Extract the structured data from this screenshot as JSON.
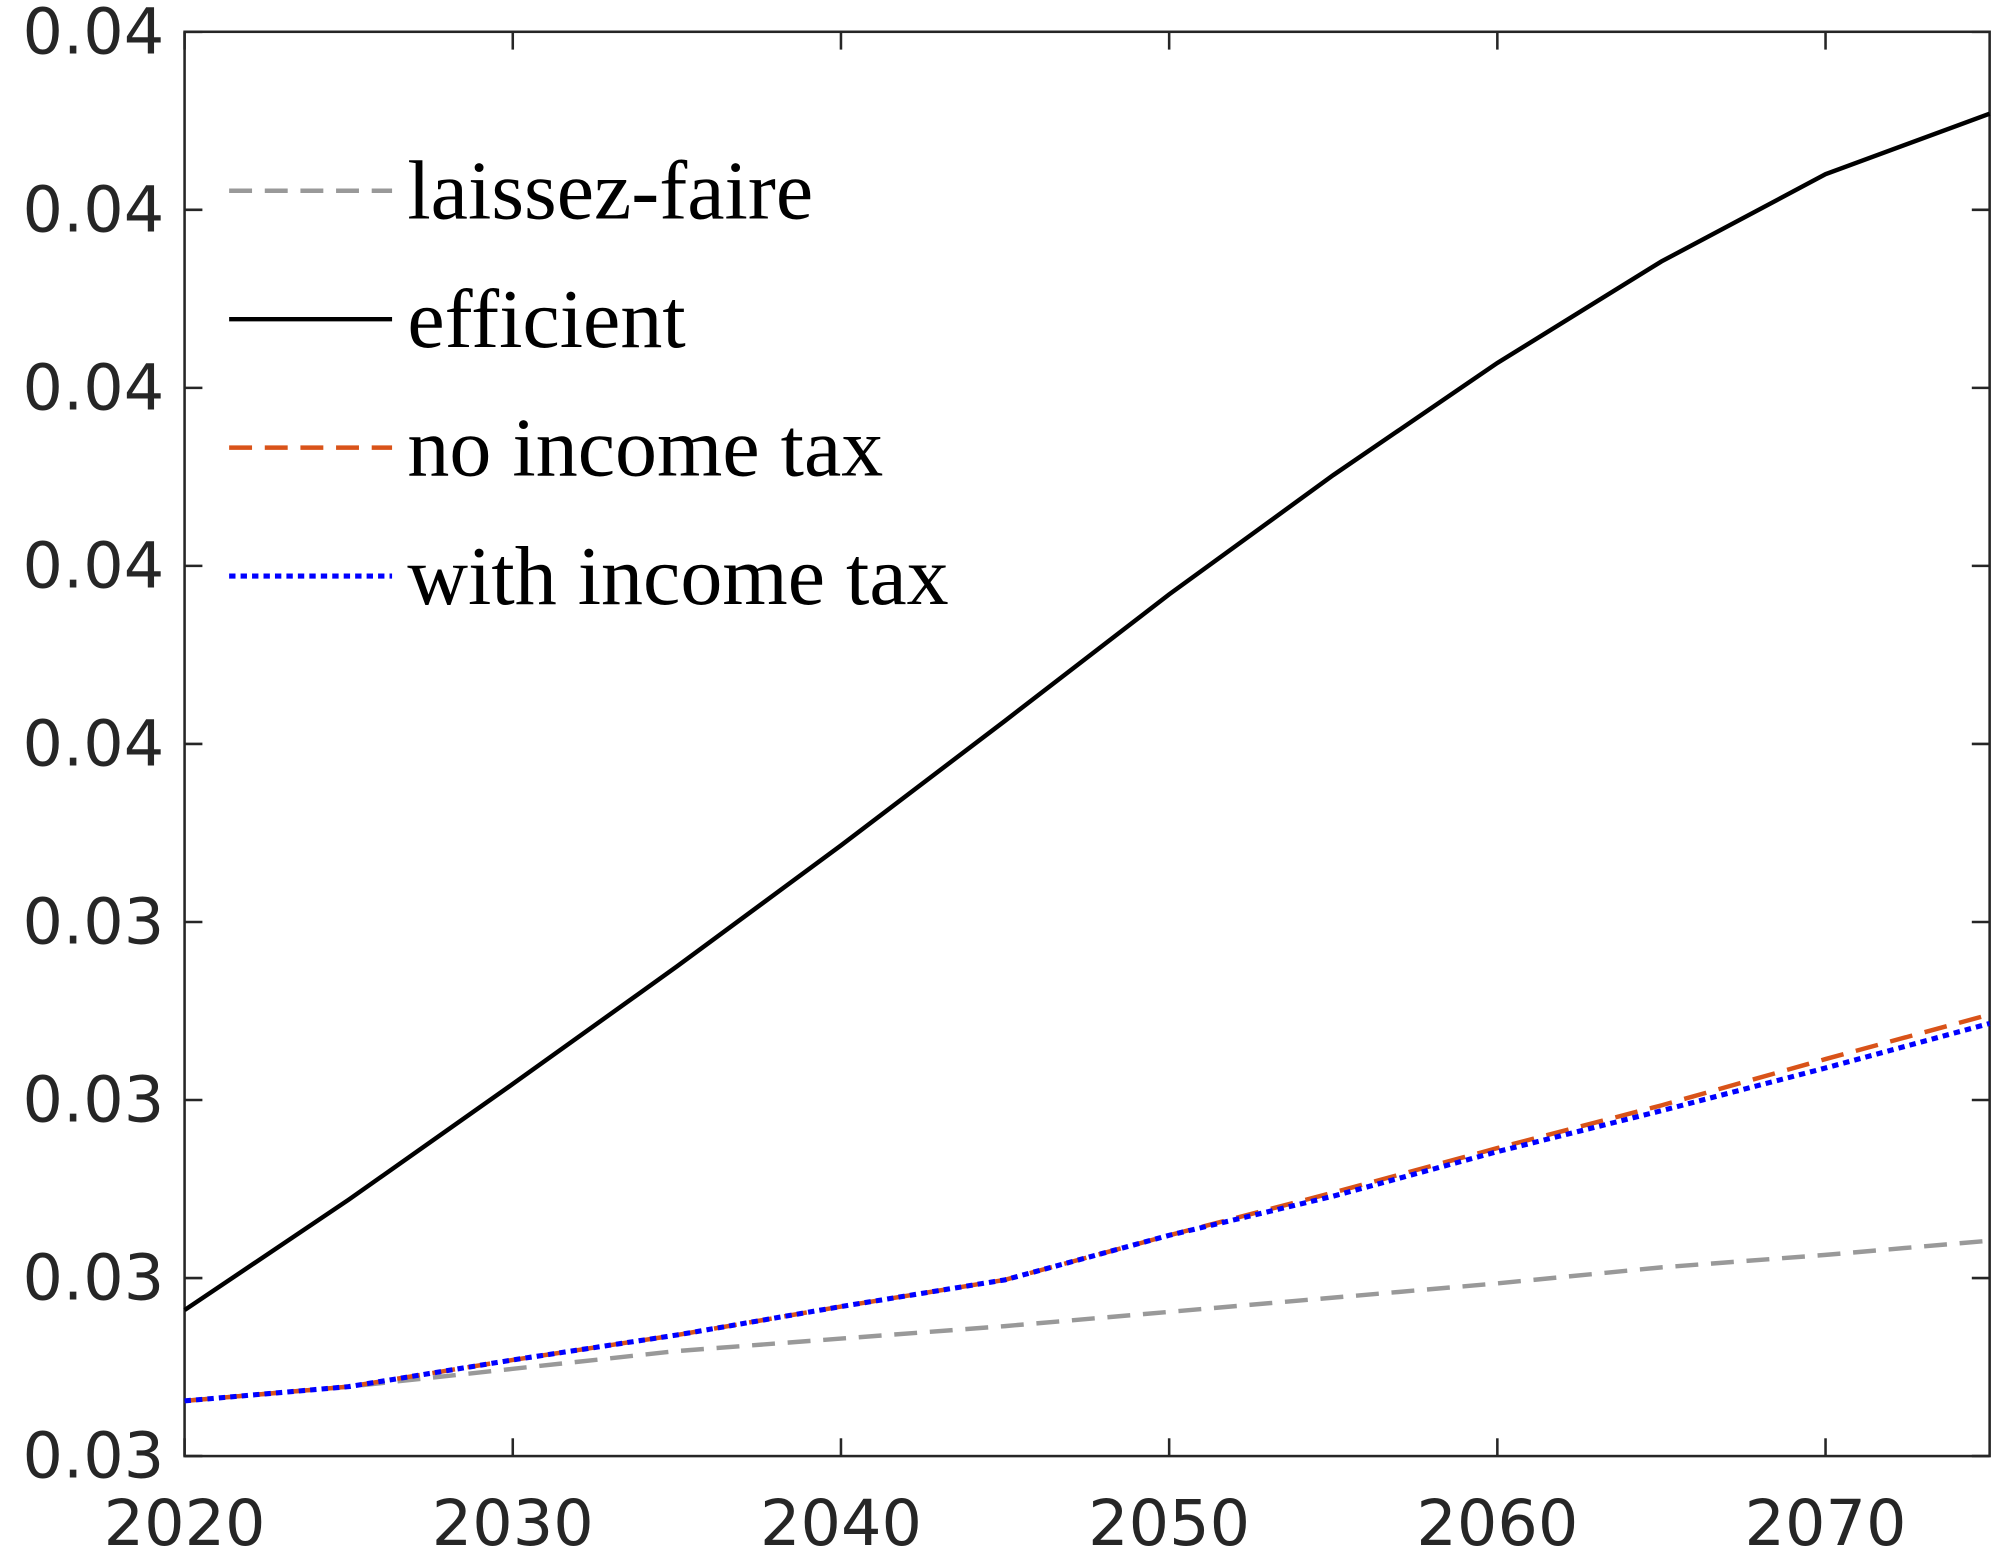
{
  "chart_data": {
    "type": "line",
    "x": [
      2020,
      2025,
      2030,
      2035,
      2040,
      2045,
      2050,
      2055,
      2060,
      2065,
      2070,
      2075
    ],
    "series": [
      {
        "name": "laissez-faire",
        "color": "#999999",
        "style": "dashed",
        "values": [
          0.03131,
          0.03139,
          0.03149,
          0.03159,
          0.03166,
          0.03173,
          0.03181,
          0.03189,
          0.03197,
          0.03206,
          0.03213,
          0.03221
        ]
      },
      {
        "name": "efficient",
        "color": "#000000",
        "style": "solid",
        "values": [
          0.03182,
          0.03244,
          0.03309,
          0.03375,
          0.03443,
          0.03513,
          0.03584,
          0.03651,
          0.03714,
          0.03771,
          0.0382,
          0.03854
        ]
      },
      {
        "name": "no income tax",
        "color": "#d95319",
        "style": "dashed",
        "values": [
          0.03131,
          0.03139,
          0.03154,
          0.03168,
          0.03184,
          0.03199,
          0.03224,
          0.03248,
          0.03273,
          0.03297,
          0.03323,
          0.03348
        ]
      },
      {
        "name": "with income tax",
        "color": "#0000ff",
        "style": "dotted",
        "values": [
          0.03131,
          0.03139,
          0.03154,
          0.03168,
          0.03184,
          0.03199,
          0.03224,
          0.03246,
          0.03271,
          0.03294,
          0.03318,
          0.03343
        ]
      }
    ],
    "xlim": [
      2020,
      2075
    ],
    "xticks": [
      2020,
      2030,
      2040,
      2050,
      2060,
      2070
    ],
    "ylim": [
      0.031,
      0.039
    ],
    "yticks": [
      {
        "value": 0.031,
        "label": "0.03"
      },
      {
        "value": 0.032,
        "label": "0.03"
      },
      {
        "value": 0.033,
        "label": "0.03"
      },
      {
        "value": 0.034,
        "label": "0.03"
      },
      {
        "value": 0.035,
        "label": "0.04"
      },
      {
        "value": 0.036,
        "label": "0.04"
      },
      {
        "value": 0.037,
        "label": "0.04"
      },
      {
        "value": 0.038,
        "label": "0.04"
      },
      {
        "value": 0.039,
        "label": "0.04"
      }
    ],
    "grid": false,
    "legend": "upper left"
  }
}
